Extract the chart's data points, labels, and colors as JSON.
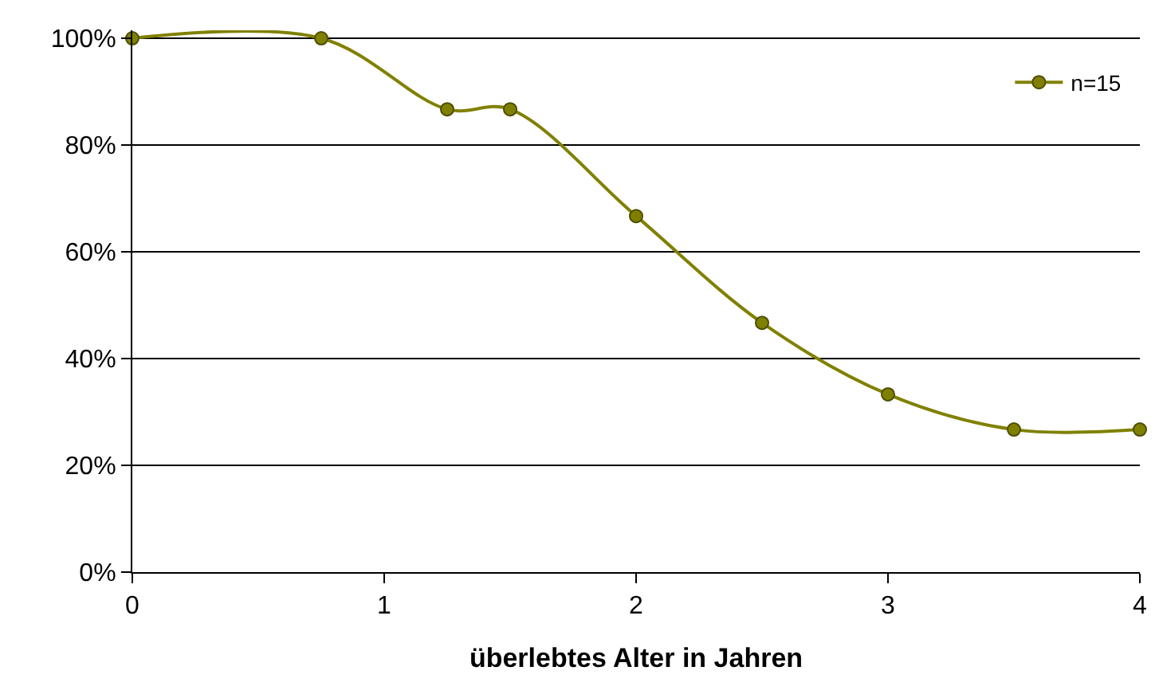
{
  "chart_data": {
    "type": "line",
    "xlabel": "überlebtes Alter in Jahren",
    "x": [
      0,
      0.75,
      1.25,
      1.5,
      2,
      2.5,
      3,
      3.5,
      4
    ],
    "series": [
      {
        "name": "n=15",
        "color": "#808000",
        "values": [
          100,
          100,
          86.7,
          86.7,
          66.7,
          46.7,
          33.3,
          26.7,
          26.7
        ]
      }
    ],
    "xlim": [
      0,
      4
    ],
    "xticks": [
      0,
      1,
      2,
      3,
      4
    ],
    "ylim": [
      0,
      100
    ],
    "yticks": [
      {
        "value": 0,
        "label": "0%"
      },
      {
        "value": 20,
        "label": "20%"
      },
      {
        "value": 40,
        "label": "40%"
      },
      {
        "value": 60,
        "label": "60%"
      },
      {
        "value": 80,
        "label": "80%"
      },
      {
        "value": 100,
        "label": "100%"
      }
    ],
    "grid": "y",
    "legend": "top right",
    "marker": "circle",
    "line_style": "solid"
  }
}
